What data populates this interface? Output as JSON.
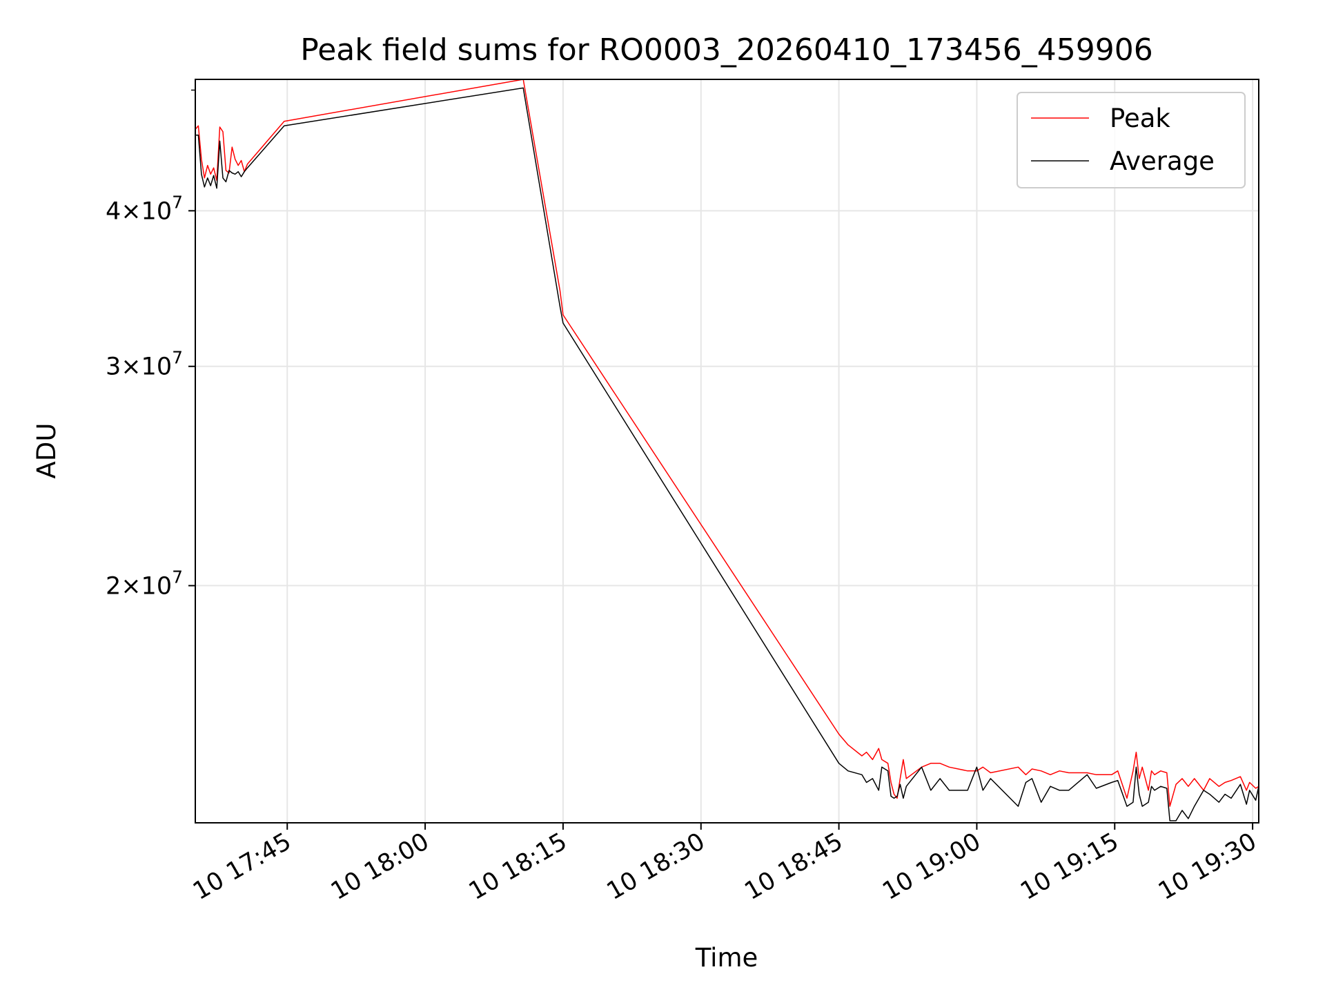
{
  "chart_data": {
    "type": "line",
    "title": "Peak field sums for RO0003_20260410_173456_459906",
    "xlabel": "Time",
    "ylabel": "ADU",
    "y_scale": "log",
    "xlim": [
      "2026-04-10 17:35:00",
      "2026-04-10 19:30:40"
    ],
    "ylim": [
      12900000,
      51000000
    ],
    "grid": true,
    "legend_position": "top-right",
    "x_ticks": [
      {
        "time": "2026-04-10 17:45:00",
        "label": "10 17:45"
      },
      {
        "time": "2026-04-10 18:00:00",
        "label": "10 18:00"
      },
      {
        "time": "2026-04-10 18:15:00",
        "label": "10 18:15"
      },
      {
        "time": "2026-04-10 18:30:00",
        "label": "10 18:30"
      },
      {
        "time": "2026-04-10 18:45:00",
        "label": "10 18:45"
      },
      {
        "time": "2026-04-10 19:00:00",
        "label": "10 19:00"
      },
      {
        "time": "2026-04-10 19:15:00",
        "label": "10 19:15"
      },
      {
        "time": "2026-04-10 19:30:00",
        "label": "10 19:30"
      }
    ],
    "y_ticks": [
      {
        "value": 20000000,
        "mantissa": "2",
        "base": "10",
        "exponent": "7"
      },
      {
        "value": 30000000,
        "mantissa": "3",
        "base": "10",
        "exponent": "7"
      },
      {
        "value": 40000000,
        "mantissa": "4",
        "base": "10",
        "exponent": "7"
      }
    ],
    "series": [
      {
        "name": "Peak",
        "color": "#ff0000",
        "points": [
          [
            "2026-04-10 17:35:00",
            46500000
          ],
          [
            "2026-04-10 17:35:20",
            46800000
          ],
          [
            "2026-04-10 17:35:40",
            44000000
          ],
          [
            "2026-04-10 17:36:00",
            42500000
          ],
          [
            "2026-04-10 17:36:20",
            43500000
          ],
          [
            "2026-04-10 17:36:40",
            42800000
          ],
          [
            "2026-04-10 17:37:00",
            43300000
          ],
          [
            "2026-04-10 17:37:20",
            42300000
          ],
          [
            "2026-04-10 17:37:40",
            46700000
          ],
          [
            "2026-04-10 17:38:00",
            46300000
          ],
          [
            "2026-04-10 17:38:20",
            43100000
          ],
          [
            "2026-04-10 17:38:40",
            42900000
          ],
          [
            "2026-04-10 17:39:00",
            45000000
          ],
          [
            "2026-04-10 17:39:20",
            44000000
          ],
          [
            "2026-04-10 17:39:40",
            43500000
          ],
          [
            "2026-04-10 17:40:00",
            43900000
          ],
          [
            "2026-04-10 17:40:20",
            43000000
          ],
          [
            "2026-04-10 17:40:40",
            43600000
          ],
          [
            "2026-04-10 17:44:40",
            47200000
          ],
          [
            "2026-04-10 18:10:40",
            51000000
          ],
          [
            "2026-04-10 18:14:40",
            34500000
          ],
          [
            "2026-04-10 18:15:00",
            33000000
          ],
          [
            "2026-04-10 18:45:00",
            15200000
          ],
          [
            "2026-04-10 18:46:00",
            14900000
          ],
          [
            "2026-04-10 18:47:30",
            14600000
          ],
          [
            "2026-04-10 18:48:00",
            14700000
          ],
          [
            "2026-04-10 18:48:40",
            14500000
          ],
          [
            "2026-04-10 18:49:20",
            14800000
          ],
          [
            "2026-04-10 18:49:40",
            14500000
          ],
          [
            "2026-04-10 18:50:20",
            14400000
          ],
          [
            "2026-04-10 18:50:40",
            13900000
          ],
          [
            "2026-04-10 18:51:00",
            13600000
          ],
          [
            "2026-04-10 18:51:20",
            13500000
          ],
          [
            "2026-04-10 18:51:40",
            14000000
          ],
          [
            "2026-04-10 18:52:00",
            14500000
          ],
          [
            "2026-04-10 18:52:20",
            14000000
          ],
          [
            "2026-04-10 18:54:00",
            14300000
          ],
          [
            "2026-04-10 18:55:00",
            14400000
          ],
          [
            "2026-04-10 18:56:00",
            14400000
          ],
          [
            "2026-04-10 18:57:00",
            14300000
          ],
          [
            "2026-04-10 18:59:00",
            14200000
          ],
          [
            "2026-04-10 19:00:00",
            14200000
          ],
          [
            "2026-04-10 19:00:40",
            14300000
          ],
          [
            "2026-04-10 19:01:30",
            14150000
          ],
          [
            "2026-04-10 19:04:30",
            14300000
          ],
          [
            "2026-04-10 19:05:20",
            14100000
          ],
          [
            "2026-04-10 19:06:00",
            14250000
          ],
          [
            "2026-04-10 19:07:00",
            14200000
          ],
          [
            "2026-04-10 19:08:00",
            14100000
          ],
          [
            "2026-04-10 19:09:00",
            14200000
          ],
          [
            "2026-04-10 19:10:00",
            14150000
          ],
          [
            "2026-04-10 19:12:00",
            14150000
          ],
          [
            "2026-04-10 19:13:00",
            14100000
          ],
          [
            "2026-04-10 19:14:40",
            14100000
          ],
          [
            "2026-04-10 19:15:20",
            14200000
          ],
          [
            "2026-04-10 19:16:20",
            13500000
          ],
          [
            "2026-04-10 19:17:00",
            14200000
          ],
          [
            "2026-04-10 19:17:20",
            14700000
          ],
          [
            "2026-04-10 19:17:40",
            14000000
          ],
          [
            "2026-04-10 19:18:00",
            14300000
          ],
          [
            "2026-04-10 19:18:40",
            13700000
          ],
          [
            "2026-04-10 19:19:00",
            14200000
          ],
          [
            "2026-04-10 19:19:20",
            14100000
          ],
          [
            "2026-04-10 19:20:00",
            14200000
          ],
          [
            "2026-04-10 19:20:40",
            14150000
          ],
          [
            "2026-04-10 19:21:00",
            13300000
          ],
          [
            "2026-04-10 19:21:40",
            13850000
          ],
          [
            "2026-04-10 19:22:20",
            14000000
          ],
          [
            "2026-04-10 19:23:00",
            13800000
          ],
          [
            "2026-04-10 19:23:40",
            14000000
          ],
          [
            "2026-04-10 19:24:40",
            13700000
          ],
          [
            "2026-04-10 19:25:20",
            14000000
          ],
          [
            "2026-04-10 19:26:20",
            13800000
          ],
          [
            "2026-04-10 19:27:00",
            13900000
          ],
          [
            "2026-04-10 19:27:40",
            13950000
          ],
          [
            "2026-04-10 19:28:40",
            14050000
          ],
          [
            "2026-04-10 19:29:20",
            13700000
          ],
          [
            "2026-04-10 19:29:40",
            13900000
          ],
          [
            "2026-04-10 19:30:20",
            13750000
          ],
          [
            "2026-04-10 19:30:40",
            13800000
          ]
        ]
      },
      {
        "name": "Average",
        "color": "#000000",
        "points": [
          [
            "2026-04-10 17:35:00",
            46000000
          ],
          [
            "2026-04-10 17:35:20",
            46000000
          ],
          [
            "2026-04-10 17:35:40",
            42800000
          ],
          [
            "2026-04-10 17:36:00",
            41800000
          ],
          [
            "2026-04-10 17:36:20",
            42500000
          ],
          [
            "2026-04-10 17:36:40",
            41900000
          ],
          [
            "2026-04-10 17:37:00",
            42700000
          ],
          [
            "2026-04-10 17:37:20",
            41700000
          ],
          [
            "2026-04-10 17:37:40",
            45500000
          ],
          [
            "2026-04-10 17:38:00",
            42500000
          ],
          [
            "2026-04-10 17:38:20",
            42200000
          ],
          [
            "2026-04-10 17:38:40",
            43100000
          ],
          [
            "2026-04-10 17:39:00",
            42900000
          ],
          [
            "2026-04-10 17:39:20",
            42800000
          ],
          [
            "2026-04-10 17:39:40",
            43000000
          ],
          [
            "2026-04-10 17:40:00",
            42600000
          ],
          [
            "2026-04-10 17:40:20",
            43000000
          ],
          [
            "2026-04-10 17:40:40",
            43300000
          ],
          [
            "2026-04-10 17:44:40",
            46800000
          ],
          [
            "2026-04-10 18:10:40",
            50200000
          ],
          [
            "2026-04-10 18:14:40",
            33500000
          ],
          [
            "2026-04-10 18:15:00",
            32500000
          ],
          [
            "2026-04-10 18:45:00",
            14400000
          ],
          [
            "2026-04-10 18:46:00",
            14200000
          ],
          [
            "2026-04-10 18:47:30",
            14100000
          ],
          [
            "2026-04-10 18:48:00",
            13900000
          ],
          [
            "2026-04-10 18:48:40",
            14000000
          ],
          [
            "2026-04-10 18:49:20",
            13700000
          ],
          [
            "2026-04-10 18:49:40",
            14300000
          ],
          [
            "2026-04-10 18:50:20",
            14200000
          ],
          [
            "2026-04-10 18:50:40",
            13550000
          ],
          [
            "2026-04-10 18:51:00",
            13500000
          ],
          [
            "2026-04-10 18:51:20",
            13550000
          ],
          [
            "2026-04-10 18:51:40",
            13850000
          ],
          [
            "2026-04-10 18:52:00",
            13500000
          ],
          [
            "2026-04-10 18:52:20",
            13800000
          ],
          [
            "2026-04-10 18:54:00",
            14300000
          ],
          [
            "2026-04-10 18:55:00",
            13700000
          ],
          [
            "2026-04-10 18:56:00",
            14000000
          ],
          [
            "2026-04-10 18:57:00",
            13700000
          ],
          [
            "2026-04-10 18:59:00",
            13700000
          ],
          [
            "2026-04-10 19:00:00",
            14300000
          ],
          [
            "2026-04-10 19:00:40",
            13700000
          ],
          [
            "2026-04-10 19:01:30",
            14000000
          ],
          [
            "2026-04-10 19:04:30",
            13300000
          ],
          [
            "2026-04-10 19:05:20",
            13900000
          ],
          [
            "2026-04-10 19:06:00",
            14000000
          ],
          [
            "2026-04-10 19:07:00",
            13400000
          ],
          [
            "2026-04-10 19:08:00",
            13800000
          ],
          [
            "2026-04-10 19:09:00",
            13700000
          ],
          [
            "2026-04-10 19:10:00",
            13700000
          ],
          [
            "2026-04-10 19:12:00",
            14100000
          ],
          [
            "2026-04-10 19:13:00",
            13750000
          ],
          [
            "2026-04-10 19:14:40",
            13900000
          ],
          [
            "2026-04-10 19:15:20",
            13950000
          ],
          [
            "2026-04-10 19:16:20",
            13300000
          ],
          [
            "2026-04-10 19:17:00",
            13400000
          ],
          [
            "2026-04-10 19:17:20",
            14300000
          ],
          [
            "2026-04-10 19:17:40",
            13600000
          ],
          [
            "2026-04-10 19:18:00",
            13300000
          ],
          [
            "2026-04-10 19:18:40",
            13400000
          ],
          [
            "2026-04-10 19:19:00",
            13800000
          ],
          [
            "2026-04-10 19:19:20",
            13700000
          ],
          [
            "2026-04-10 19:20:00",
            13800000
          ],
          [
            "2026-04-10 19:20:40",
            13750000
          ],
          [
            "2026-04-10 19:21:00",
            12950000
          ],
          [
            "2026-04-10 19:21:40",
            12950000
          ],
          [
            "2026-04-10 19:22:20",
            13200000
          ],
          [
            "2026-04-10 19:23:00",
            13000000
          ],
          [
            "2026-04-10 19:23:40",
            13300000
          ],
          [
            "2026-04-10 19:24:40",
            13700000
          ],
          [
            "2026-04-10 19:25:20",
            13600000
          ],
          [
            "2026-04-10 19:26:20",
            13400000
          ],
          [
            "2026-04-10 19:27:00",
            13600000
          ],
          [
            "2026-04-10 19:27:40",
            13500000
          ],
          [
            "2026-04-10 19:28:40",
            13850000
          ],
          [
            "2026-04-10 19:29:20",
            13350000
          ],
          [
            "2026-04-10 19:29:40",
            13700000
          ],
          [
            "2026-04-10 19:30:20",
            13450000
          ],
          [
            "2026-04-10 19:30:40",
            13800000
          ]
        ]
      }
    ]
  }
}
